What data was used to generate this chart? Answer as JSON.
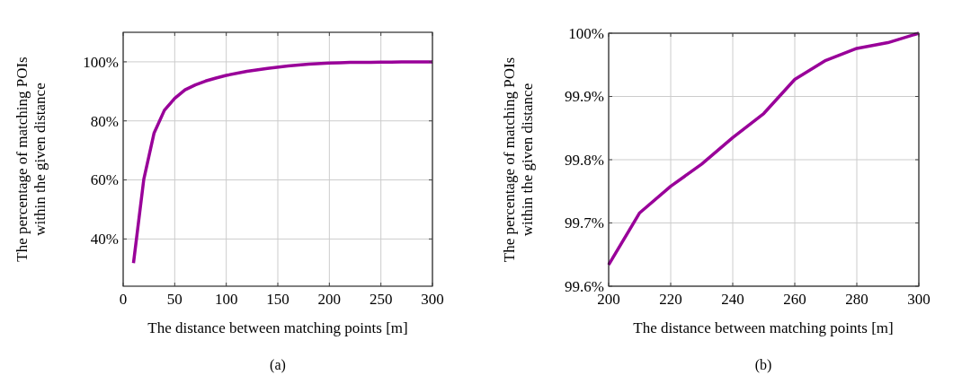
{
  "chart_data": [
    {
      "type": "line",
      "xlabel": "The distance between matching points [m]",
      "ylabel": "The percentage of matching POIs\nwithin the given distance",
      "annotations": [
        "(a)"
      ],
      "xlim": [
        0,
        300
      ],
      "xticks": [
        0,
        50,
        100,
        150,
        200,
        250,
        300
      ],
      "ylim": [
        24,
        110
      ],
      "yticks": [
        {
          "value": 40,
          "label": "40%"
        },
        {
          "value": 60,
          "label": "60%"
        },
        {
          "value": 80,
          "label": "80%"
        },
        {
          "value": 100,
          "label": "100%"
        }
      ],
      "grid": true,
      "x": [
        10,
        20,
        30,
        40,
        50,
        60,
        70,
        80,
        90,
        100,
        120,
        140,
        160,
        180,
        200,
        210,
        220,
        230,
        240,
        250,
        260,
        270,
        280,
        290,
        300
      ],
      "series": [
        {
          "color": "#990099",
          "values": [
            31.8,
            60.2,
            75.9,
            83.6,
            87.6,
            90.5,
            92.2,
            93.5,
            94.5,
            95.4,
            96.8,
            97.8,
            98.6,
            99.2,
            99.6,
            99.7,
            99.8,
            99.8,
            99.8,
            99.9,
            99.9,
            100,
            100,
            100,
            100
          ]
        }
      ]
    },
    {
      "type": "line",
      "xlabel": "The distance between matching points [m]",
      "ylabel": "The percentage of matching POIs\nwithin the given distance",
      "annotations": [
        "(b)"
      ],
      "xlim": [
        200,
        300
      ],
      "xticks": [
        200,
        220,
        240,
        260,
        280,
        300
      ],
      "ylim": [
        99.6,
        100
      ],
      "yticks": [
        {
          "value": 99.6,
          "label": "99.6%"
        },
        {
          "value": 99.7,
          "label": "99.7%"
        },
        {
          "value": 99.8,
          "label": "99.8%"
        },
        {
          "value": 99.9,
          "label": "99.9%"
        },
        {
          "value": 100,
          "label": "100%"
        }
      ],
      "grid": true,
      "x": [
        200,
        210,
        220,
        230,
        240,
        250,
        260,
        270,
        280,
        290,
        300
      ],
      "series": [
        {
          "color": "#990099",
          "values": [
            99.634,
            99.716,
            99.758,
            99.793,
            99.835,
            99.873,
            99.927,
            99.957,
            99.976,
            99.985,
            100
          ]
        }
      ]
    }
  ]
}
